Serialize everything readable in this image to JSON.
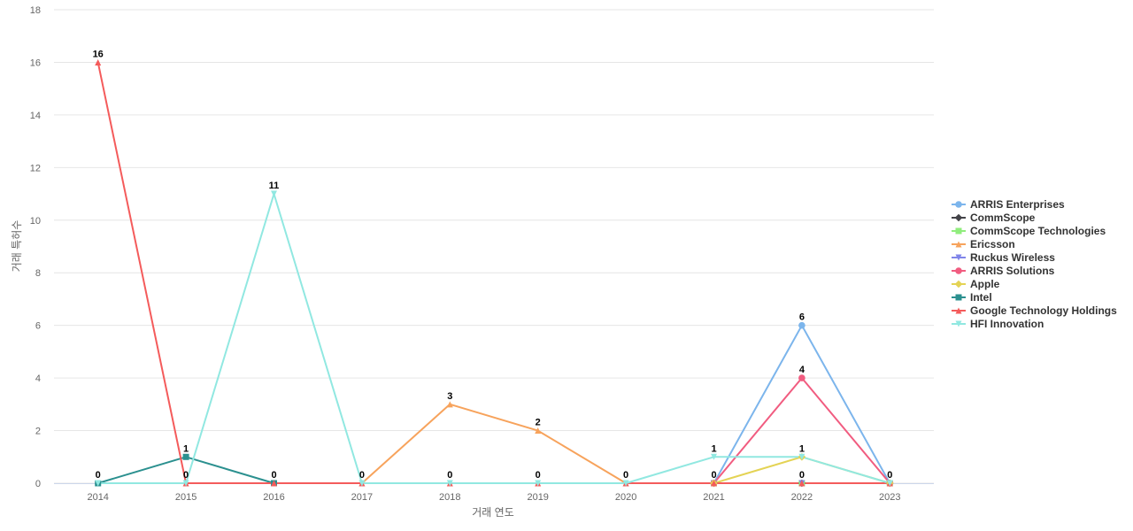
{
  "chart_data": {
    "type": "line",
    "title": "",
    "xlabel": "거래 연도",
    "ylabel": "거래 특허수",
    "ylim": [
      0,
      18
    ],
    "yticks": [
      0,
      2,
      4,
      6,
      8,
      10,
      12,
      14,
      16,
      18
    ],
    "grid": true,
    "legend_position": "right",
    "x": [
      "2014",
      "2015",
      "2016",
      "2017",
      "2018",
      "2019",
      "2020",
      "2021",
      "2022",
      "2023"
    ],
    "series": [
      {
        "name": "ARRIS Enterprises",
        "color": "#7cb5ec",
        "marker": "circle",
        "values": [
          null,
          null,
          null,
          null,
          null,
          null,
          null,
          0,
          6,
          0
        ]
      },
      {
        "name": "CommScope",
        "color": "#434348",
        "marker": "diamond",
        "values": [
          null,
          null,
          null,
          null,
          null,
          null,
          null,
          0,
          0,
          0
        ]
      },
      {
        "name": "CommScope Technologies",
        "color": "#90ed7d",
        "marker": "square",
        "values": [
          null,
          null,
          null,
          null,
          null,
          null,
          null,
          0,
          0,
          0
        ]
      },
      {
        "name": "Ericsson",
        "color": "#f7a35c",
        "marker": "triangle",
        "values": [
          null,
          null,
          null,
          0,
          3,
          2,
          0,
          null,
          null,
          null
        ]
      },
      {
        "name": "Ruckus Wireless",
        "color": "#8085e9",
        "marker": "triangle-down",
        "values": [
          null,
          null,
          null,
          null,
          null,
          null,
          null,
          0,
          0,
          0
        ]
      },
      {
        "name": "ARRIS Solutions",
        "color": "#f15c80",
        "marker": "circle",
        "values": [
          null,
          null,
          null,
          null,
          null,
          null,
          null,
          0,
          4,
          0
        ]
      },
      {
        "name": "Apple",
        "color": "#e4d354",
        "marker": "diamond",
        "values": [
          null,
          null,
          null,
          null,
          null,
          null,
          null,
          0,
          1,
          0
        ]
      },
      {
        "name": "Intel",
        "color": "#2b908f",
        "marker": "square",
        "values": [
          0,
          1,
          0,
          null,
          null,
          null,
          null,
          null,
          null,
          null
        ]
      },
      {
        "name": "Google Technology Holdings",
        "color": "#f45b5b",
        "marker": "triangle",
        "values": [
          16,
          0,
          0,
          0,
          0,
          0,
          0,
          0,
          0,
          0
        ]
      },
      {
        "name": "HFI Innovation",
        "color": "#91e8e1",
        "marker": "triangle-down",
        "values": [
          0,
          0,
          11,
          0,
          0,
          0,
          0,
          1,
          1,
          0
        ]
      }
    ],
    "data_labels": [
      {
        "x": "2014",
        "value": 16,
        "text": "16"
      },
      {
        "x": "2014",
        "value": 0,
        "text": "0"
      },
      {
        "x": "2015",
        "value": 1,
        "text": "1"
      },
      {
        "x": "2015",
        "value": 0,
        "text": "0"
      },
      {
        "x": "2016",
        "value": 11,
        "text": "11"
      },
      {
        "x": "2016",
        "value": 0,
        "text": "0"
      },
      {
        "x": "2017",
        "value": 0,
        "text": "0"
      },
      {
        "x": "2018",
        "value": 3,
        "text": "3"
      },
      {
        "x": "2018",
        "value": 0,
        "text": "0"
      },
      {
        "x": "2019",
        "value": 2,
        "text": "2"
      },
      {
        "x": "2019",
        "value": 0,
        "text": "0"
      },
      {
        "x": "2020",
        "value": 0,
        "text": "0"
      },
      {
        "x": "2021",
        "value": 1,
        "text": "1"
      },
      {
        "x": "2021",
        "value": 0,
        "text": "0"
      },
      {
        "x": "2022",
        "value": 6,
        "text": "6"
      },
      {
        "x": "2022",
        "value": 4,
        "text": "4"
      },
      {
        "x": "2022",
        "value": 1,
        "text": "1"
      },
      {
        "x": "2022",
        "value": 0,
        "text": "0"
      },
      {
        "x": "2023",
        "value": 0,
        "text": "0"
      }
    ]
  }
}
